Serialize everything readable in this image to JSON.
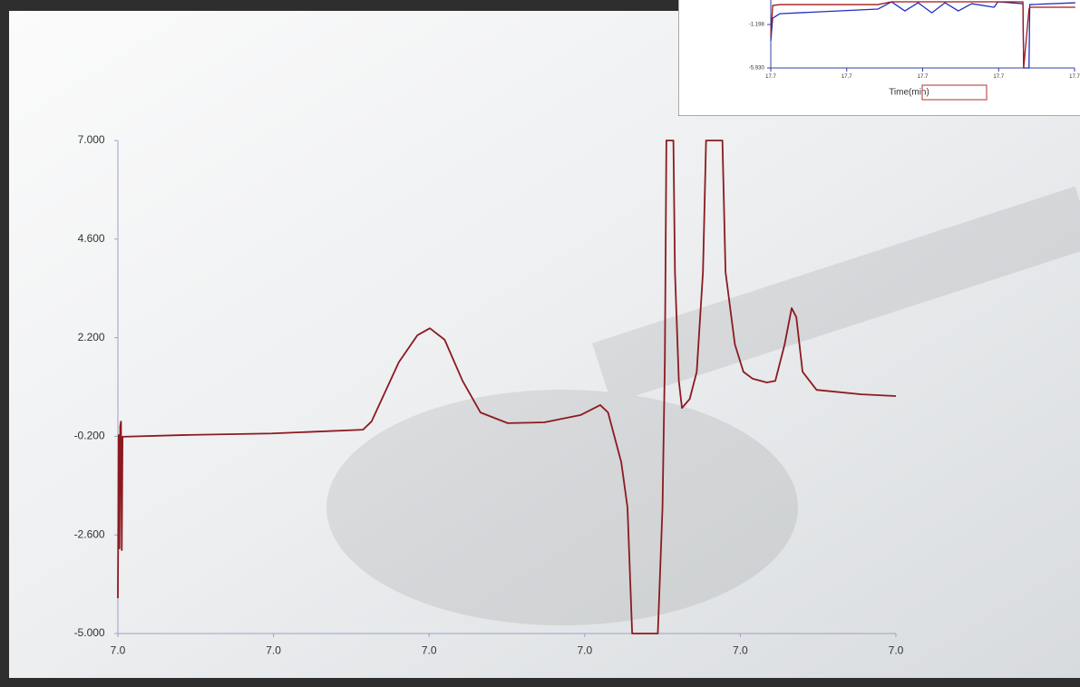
{
  "chart_data": [
    {
      "type": "line",
      "x": [
        6.96,
        6.9601,
        6.9602,
        6.9603,
        6.9604,
        6.9605,
        6.9606,
        6.9682,
        6.9798,
        6.9915,
        6.9926,
        6.9961,
        6.9985,
        7.0001,
        7.002,
        7.0043,
        7.0066,
        7.0101,
        7.0148,
        7.0195,
        7.022,
        7.023,
        7.0247,
        7.0255,
        7.0261,
        7.0294,
        7.03,
        7.0303,
        7.0305,
        7.0314,
        7.0316,
        7.0321,
        7.0325,
        7.0335,
        7.0344,
        7.0352,
        7.0356,
        7.0377,
        7.0381,
        7.0393,
        7.0404,
        7.0416,
        7.0434,
        7.0445,
        7.0457,
        7.0466,
        7.0472,
        7.048,
        7.0498,
        7.0556,
        7.06
      ],
      "series": [
        {
          "color": "#8b1a1f",
          "values": [
            -4.14,
            -0.17,
            -2.93,
            0.05,
            0.16,
            -2.97,
            -0.21,
            -0.17,
            -0.13,
            -0.04,
            0.16,
            1.6,
            2.26,
            2.43,
            2.15,
            1.15,
            0.38,
            0.12,
            0.14,
            0.32,
            0.56,
            0.38,
            -0.83,
            -1.93,
            -5,
            -5,
            -1.93,
            1.6,
            7,
            7,
            3.8,
            1.15,
            0.49,
            0.71,
            1.37,
            3.8,
            7,
            7,
            3.8,
            2.04,
            1.37,
            1.2,
            1.11,
            1.15,
            2.04,
            2.92,
            2.7,
            1.37,
            0.93,
            0.82,
            0.78
          ]
        }
      ],
      "xlim": [
        6.96,
        7.06
      ],
      "xticks": [
        {
          "value": 6.96,
          "label": "7.0"
        },
        {
          "value": 6.98,
          "label": "7.0"
        },
        {
          "value": 7.0,
          "label": "7.0"
        },
        {
          "value": 7.02,
          "label": "7.0"
        },
        {
          "value": 7.04,
          "label": "7.0"
        },
        {
          "value": 7.06,
          "label": "7.0"
        }
      ],
      "ylim": [
        -5,
        7
      ],
      "yticks": [
        {
          "value": 7,
          "label": "7.000"
        },
        {
          "value": 4.6,
          "label": "4.600"
        },
        {
          "value": 2.2,
          "label": "2.200"
        },
        {
          "value": -0.2,
          "label": "-0.200"
        },
        {
          "value": -2.6,
          "label": "-2.600"
        },
        {
          "value": -5,
          "label": "-5.000"
        }
      ]
    },
    {
      "type": "line",
      "x_label": "Time(min)",
      "x": [
        17.66,
        17.6605,
        17.6624,
        17.6882,
        17.6918,
        17.6953,
        17.6988,
        17.7024,
        17.7059,
        17.7094,
        17.7129,
        17.7188,
        17.7198,
        17.7264,
        17.7266,
        17.728,
        17.7282,
        17.7402
      ],
      "series": [
        {
          "color": "#1f2fbf",
          "values": [
            -2.97,
            -0.51,
            -0.02,
            0.48,
            1.27,
            0.28,
            1.17,
            0.08,
            1.17,
            0.28,
            1.07,
            0.68,
            1.27,
            1.07,
            -5.93,
            -5.93,
            0.97,
            1.17
          ]
        },
        {
          "color": "#a01818",
          "values": [
            -2.48,
            0.87,
            0.97,
            0.97,
            1.27,
            1.27,
            1.27,
            1.27,
            1.27,
            1.27,
            1.27,
            1.27,
            1.27,
            1.27,
            -5.93,
            0.48,
            0.68,
            0.68
          ]
        }
      ],
      "xlim": [
        17.66,
        17.74
      ],
      "xticks": [
        {
          "value": 17.66,
          "label": "17.7"
        },
        {
          "value": 17.68,
          "label": "17.7"
        },
        {
          "value": 17.7,
          "label": "17.7"
        },
        {
          "value": 17.72,
          "label": "17.7"
        },
        {
          "value": 17.74,
          "label": "17.7"
        }
      ],
      "ylim": [
        -5.93,
        1.47
      ],
      "yticks": [
        -1.198,
        {
          "value": -5.93,
          "label": "-5.930"
        }
      ]
    }
  ]
}
